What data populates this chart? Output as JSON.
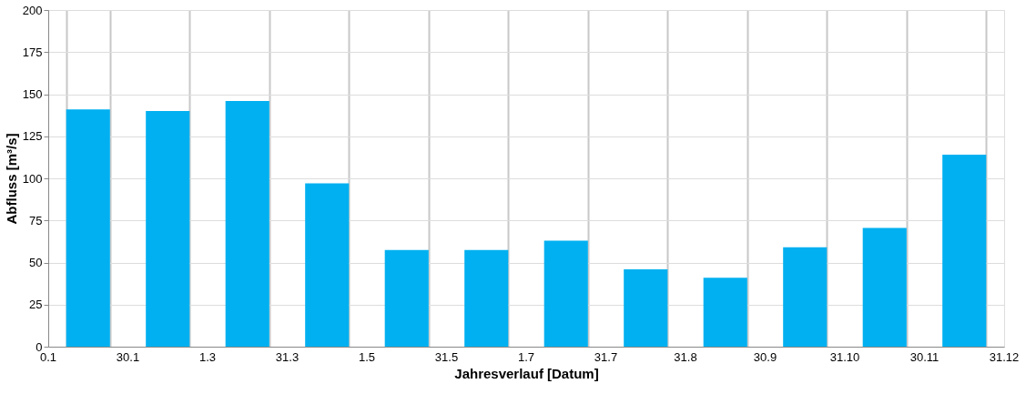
{
  "chart_data": {
    "type": "bar",
    "xlabel": "Jahresverlauf [Datum]",
    "ylabel": "Abfluss [m³/s]",
    "categories": [
      null,
      null,
      null,
      null,
      null,
      null,
      null,
      null,
      null,
      null,
      null,
      null
    ],
    "series": [
      {
        "color": "#00b0f0",
        "values": [
          141,
          140,
          146,
          97,
          57.5,
          57.5,
          63,
          46,
          41,
          59,
          70.5,
          114
        ]
      }
    ],
    "annotations": [
      "0.1",
      "30.1",
      "1.3",
      "31.3",
      "1.5",
      "31.5",
      "1.7",
      "31.7",
      "31.8",
      "30.9",
      "31.10",
      "30.11",
      "31.12"
    ],
    "ylim": [
      0,
      200
    ],
    "yticks": [
      0,
      25,
      50,
      75,
      100,
      125,
      150,
      175,
      200
    ],
    "grid": true
  }
}
